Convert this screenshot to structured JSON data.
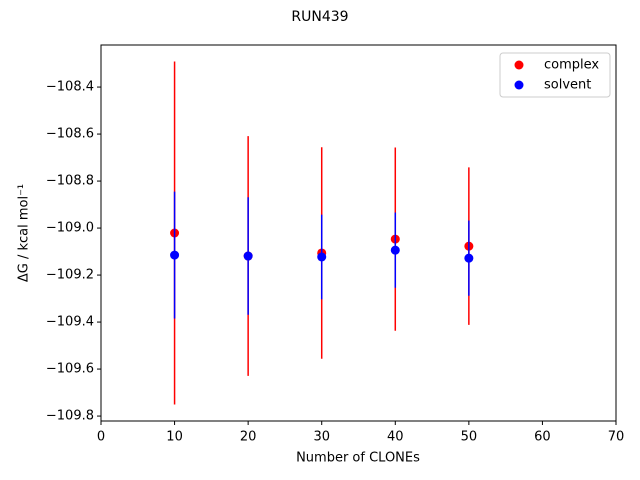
{
  "chart_data": {
    "type": "scatter",
    "title": "RUN439",
    "x_label": "Number of CLONEs",
    "y_label": "ΔG / kcal mol⁻¹",
    "x": [
      10,
      20,
      30,
      40,
      50
    ],
    "series": [
      {
        "name": "complex",
        "color": "#ff0000",
        "values": [
          -109.021,
          -109.119,
          -109.106,
          -109.047,
          -109.077
        ],
        "errors": [
          0.73,
          0.51,
          0.45,
          0.39,
          0.335
        ]
      },
      {
        "name": "solvent",
        "color": "#0000ff",
        "values": [
          -109.115,
          -109.119,
          -109.123,
          -109.094,
          -109.128
        ],
        "errors": [
          0.27,
          0.25,
          0.18,
          0.16,
          0.16
        ]
      }
    ],
    "xlim": [
      0,
      70
    ],
    "xticks": [
      0,
      10,
      20,
      30,
      40,
      50,
      60,
      70
    ],
    "ylim": [
      -109.821,
      -108.221
    ],
    "yticks": [
      {
        "value": -109.8,
        "label": "−109.8"
      },
      {
        "value": -109.6,
        "label": "−109.6"
      },
      {
        "value": -109.4,
        "label": "−109.4"
      },
      {
        "value": -109.2,
        "label": "−109.2"
      },
      {
        "value": -109.0,
        "label": "−109.0"
      },
      {
        "value": -108.8,
        "label": "−108.8"
      },
      {
        "value": -108.6,
        "label": "−108.6"
      },
      {
        "value": -108.4,
        "label": "−108.4"
      }
    ],
    "legend": "upper right",
    "grid": false
  }
}
